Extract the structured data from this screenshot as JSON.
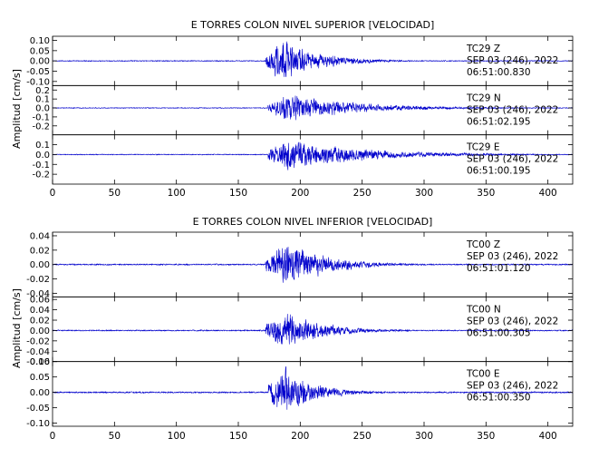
{
  "chart_data": [
    {
      "type": "line",
      "title": "E TORRES COLON NIVEL SUPERIOR [VELOCIDAD]",
      "xlabel": "",
      "ylabel": "Amplitud [cm/s]",
      "xlim": [
        0,
        420
      ],
      "xticks": [
        "0",
        "50",
        "100",
        "150",
        "200",
        "250",
        "300",
        "350",
        "400"
      ],
      "grid": false,
      "line_color": "#0000cc",
      "series": [
        {
          "station": "TC29",
          "component": "Z",
          "date_line": "SEP 03 (246), 2022",
          "start_time": "06:51:00.830",
          "ylim": [
            -0.12,
            0.12
          ],
          "yticks": [
            "0.10",
            "0.05",
            "0.00",
            "-0.05",
            "-0.10"
          ],
          "onset_s": 172,
          "peak_s": 188,
          "peak_amplitude": 0.14,
          "noise_amplitude": 0.003,
          "decay_s": 28
        },
        {
          "station": "TC29",
          "component": "N",
          "date_line": "SEP 03 (246), 2022",
          "start_time": "06:51:02.195",
          "ylim": [
            -0.3,
            0.25
          ],
          "yticks": [
            "0.2",
            "0.1",
            "0.0",
            "-0.1",
            "-0.2"
          ],
          "onset_s": 174,
          "peak_s": 192,
          "peak_amplitude": 0.2,
          "noise_amplitude": 0.006,
          "decay_s": 55
        },
        {
          "station": "TC29",
          "component": "E",
          "date_line": "SEP 03 (246), 2022",
          "start_time": "06:51:00.195",
          "ylim": [
            -0.3,
            0.2
          ],
          "yticks": [
            "0.1",
            "0.0",
            "-0.1",
            "-0.2"
          ],
          "onset_s": 174,
          "peak_s": 190,
          "peak_amplitude": 0.22,
          "noise_amplitude": 0.006,
          "decay_s": 60
        }
      ]
    },
    {
      "type": "line",
      "title": "E TORRES COLON NIVEL INFERIOR [VELOCIDAD]",
      "xlabel": "",
      "ylabel": "Amplitud [cm/s]",
      "xlim": [
        0,
        420
      ],
      "xticks": [
        "0",
        "50",
        "100",
        "150",
        "200",
        "250",
        "300",
        "350",
        "400"
      ],
      "grid": false,
      "line_color": "#0000cc",
      "series": [
        {
          "station": "TC00",
          "component": "Z",
          "date_line": "SEP 03 (246), 2022",
          "start_time": "06:51:01.120",
          "ylim": [
            -0.045,
            0.045
          ],
          "yticks": [
            "0.04",
            "0.02",
            "0.00",
            "-0.02",
            "-0.04"
          ],
          "onset_s": 172,
          "peak_s": 190,
          "peak_amplitude": 0.042,
          "noise_amplitude": 0.0012,
          "decay_s": 32
        },
        {
          "station": "TC00",
          "component": "N",
          "date_line": "SEP 03 (246), 2022",
          "start_time": "06:51:00.305",
          "ylim": [
            -0.06,
            0.065
          ],
          "yticks": [
            "0.06",
            "0.04",
            "0.02",
            "0.00",
            "-0.02",
            "-0.04",
            "-0.06"
          ],
          "onset_s": 172,
          "peak_s": 188,
          "peak_amplitude": 0.05,
          "noise_amplitude": 0.0015,
          "decay_s": 30
        },
        {
          "station": "TC00",
          "component": "E",
          "date_line": "SEP 03 (246), 2022",
          "start_time": "06:51:00.350",
          "ylim": [
            -0.11,
            0.1
          ],
          "yticks": [
            "0.10",
            "0.05",
            "0.00",
            "-0.05",
            "-0.10"
          ],
          "onset_s": 174,
          "peak_s": 188,
          "peak_amplitude": 0.1,
          "noise_amplitude": 0.003,
          "decay_s": 25
        }
      ]
    }
  ]
}
